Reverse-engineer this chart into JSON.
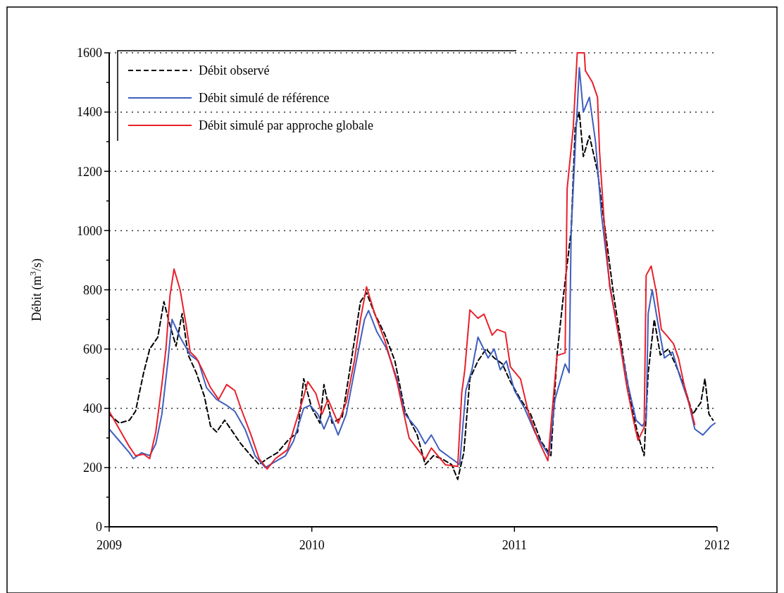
{
  "chart_data": {
    "type": "line",
    "ylabel": "Débit (m$^{3}$/s)",
    "xlim": [
      2009,
      2012
    ],
    "xticks": [
      2009,
      2010,
      2011,
      2012
    ],
    "ylim": [
      0,
      1600
    ],
    "yticks": [
      0,
      200,
      400,
      600,
      800,
      1000,
      1200,
      1400,
      1600
    ],
    "grid": "y",
    "legend": "top left",
    "series": [
      {
        "name": "Débit observé",
        "color": "#000000",
        "line_style": "dashed",
        "x": [
          2009.0,
          2009.05,
          2009.1,
          2009.13,
          2009.17,
          2009.2,
          2009.24,
          2009.27,
          2009.3,
          2009.33,
          2009.36,
          2009.39,
          2009.43,
          2009.47,
          2009.5,
          2009.53,
          2009.57,
          2009.61,
          2009.65,
          2009.7,
          2009.74,
          2009.78,
          2009.83,
          2009.88,
          2009.93,
          2009.96,
          2010.0,
          2010.04,
          2010.06,
          2010.1,
          2010.15,
          2010.19,
          2010.24,
          2010.27,
          2010.31,
          2010.36,
          2010.41,
          2010.46,
          2010.52,
          2010.56,
          2010.6,
          2010.64,
          2010.69,
          2010.72,
          2010.75,
          2010.78,
          2010.82,
          2010.86,
          2010.9,
          2010.94,
          2010.98,
          2011.03,
          2011.08,
          2011.13,
          2011.18,
          2011.21,
          2011.24,
          2011.28,
          2011.3,
          2011.32,
          2011.34,
          2011.37,
          2011.41,
          2011.45,
          2011.49,
          2011.54,
          2011.58,
          2011.61,
          2011.64,
          2011.66,
          2011.69,
          2011.72,
          2011.76,
          2011.8,
          2011.84,
          2011.88,
          2011.92,
          2011.94,
          2011.96,
          2011.98
        ],
        "values": [
          380,
          350,
          360,
          390,
          520,
          600,
          640,
          760,
          680,
          610,
          720,
          580,
          520,
          440,
          340,
          320,
          360,
          320,
          280,
          240,
          210,
          230,
          250,
          290,
          320,
          500,
          400,
          350,
          480,
          350,
          370,
          540,
          760,
          790,
          720,
          650,
          560,
          390,
          310,
          210,
          240,
          230,
          210,
          160,
          250,
          500,
          560,
          600,
          570,
          550,
          490,
          430,
          380,
          290,
          240,
          580,
          770,
          1000,
          1350,
          1400,
          1250,
          1320,
          1200,
          990,
          780,
          560,
          400,
          310,
          240,
          520,
          700,
          580,
          600,
          540,
          470,
          380,
          420,
          500,
          380,
          360
        ]
      },
      {
        "name": "Débit simulé de référence",
        "color": "#3f5fbf",
        "line_style": "solid",
        "x": [
          2009.0,
          2009.05,
          2009.1,
          2009.12,
          2009.16,
          2009.2,
          2009.23,
          2009.26,
          2009.29,
          2009.31,
          2009.35,
          2009.4,
          2009.44,
          2009.48,
          2009.53,
          2009.58,
          2009.62,
          2009.67,
          2009.72,
          2009.77,
          2009.82,
          2009.87,
          2009.91,
          2009.96,
          2009.99,
          2010.03,
          2010.06,
          2010.09,
          2010.13,
          2010.17,
          2010.22,
          2010.26,
          2010.28,
          2010.32,
          2010.37,
          2010.42,
          2010.46,
          2010.52,
          2010.56,
          2010.59,
          2010.63,
          2010.69,
          2010.73,
          2010.76,
          2010.79,
          2010.82,
          2010.87,
          2010.9,
          2010.93,
          2010.96,
          2011.0,
          2011.05,
          2011.1,
          2011.17,
          2011.2,
          2011.25,
          2011.27,
          2011.28,
          2011.3,
          2011.32,
          2011.34,
          2011.37,
          2011.4,
          2011.43,
          2011.47,
          2011.51,
          2011.56,
          2011.6,
          2011.63,
          2011.65,
          2011.66,
          2011.68,
          2011.71,
          2011.74,
          2011.78,
          2011.82,
          2011.86,
          2011.89,
          2011.93,
          2011.97,
          2011.99
        ],
        "values": [
          330,
          290,
          250,
          230,
          250,
          240,
          280,
          380,
          560,
          700,
          640,
          580,
          560,
          470,
          430,
          410,
          390,
          330,
          240,
          200,
          220,
          240,
          290,
          400,
          410,
          380,
          330,
          380,
          310,
          380,
          560,
          700,
          730,
          660,
          600,
          500,
          380,
          330,
          280,
          310,
          260,
          230,
          210,
          460,
          530,
          640,
          570,
          600,
          530,
          560,
          460,
          400,
          320,
          240,
          430,
          550,
          520,
          1000,
          1280,
          1550,
          1400,
          1450,
          1300,
          1050,
          820,
          660,
          480,
          360,
          340,
          360,
          720,
          800,
          680,
          570,
          590,
          500,
          420,
          330,
          310,
          340,
          350
        ]
      },
      {
        "name": "Débit simulé par approche globale",
        "color": "#e8202a",
        "line_style": "solid",
        "x": [
          2009.0,
          2009.05,
          2009.1,
          2009.13,
          2009.17,
          2009.2,
          2009.23,
          2009.26,
          2009.28,
          2009.3,
          2009.32,
          2009.35,
          2009.38,
          2009.4,
          2009.43,
          2009.46,
          2009.5,
          2009.54,
          2009.58,
          2009.62,
          2009.65,
          2009.7,
          2009.74,
          2009.78,
          2009.82,
          2009.88,
          2009.92,
          2009.96,
          2009.98,
          2010.02,
          2010.05,
          2010.08,
          2010.13,
          2010.17,
          2010.21,
          2010.24,
          2010.27,
          2010.31,
          2010.36,
          2010.42,
          2010.48,
          2010.56,
          2010.59,
          2010.66,
          2010.72,
          2010.74,
          2010.755,
          2010.78,
          2010.82,
          2010.85,
          2010.89,
          2010.915,
          2010.955,
          2010.98,
          2011.03,
          2011.07,
          2011.115,
          2011.165,
          2011.21,
          2011.25,
          2011.26,
          2011.29,
          2011.31,
          2011.345,
          2011.35,
          2011.385,
          2011.41,
          2011.42,
          2011.445,
          2011.47,
          2011.51,
          2011.555,
          2011.595,
          2011.61,
          2011.64,
          2011.65,
          2011.675,
          2011.7,
          2011.725,
          2011.75,
          2011.785,
          2011.81,
          2011.84,
          2011.89
        ],
        "values": [
          390,
          330,
          270,
          240,
          245,
          230,
          320,
          480,
          600,
          780,
          870,
          800,
          680,
          590,
          570,
          530,
          470,
          430,
          480,
          460,
          400,
          310,
          230,
          195,
          230,
          260,
          350,
          440,
          490,
          450,
          380,
          430,
          350,
          420,
          560,
          700,
          810,
          720,
          630,
          490,
          300,
          228,
          266,
          209,
          204,
          452,
          530,
          732,
          704,
          718,
          647,
          666,
          656,
          540,
          499,
          383,
          297,
          223,
          578,
          587,
          1141,
          1346,
          1600,
          1600,
          1540,
          1500,
          1450,
          1267,
          1005,
          811,
          666,
          471,
          335,
          292,
          335,
          849,
          880,
          792,
          666,
          647,
          618,
          568,
          471,
          345
        ]
      }
    ]
  }
}
